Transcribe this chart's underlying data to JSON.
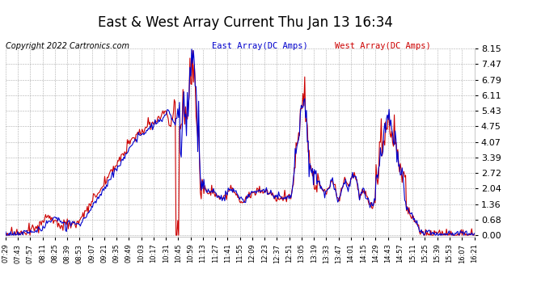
{
  "title": "East & West Array Current Thu Jan 13 16:34",
  "copyright": "Copyright 2022 Cartronics.com",
  "legend_east": "East Array(DC Amps)",
  "legend_west": "West Array(DC Amps)",
  "east_color": "#0000cc",
  "west_color": "#cc0000",
  "bg_color": "#ffffff",
  "grid_color": "#999999",
  "yticks": [
    0.0,
    0.68,
    1.36,
    2.04,
    2.72,
    3.39,
    4.07,
    4.75,
    5.43,
    6.11,
    6.79,
    7.47,
    8.15
  ],
  "ylim": [
    -0.05,
    8.15
  ],
  "xtick_labels": [
    "07:29",
    "07:43",
    "07:57",
    "08:11",
    "08:25",
    "08:39",
    "08:53",
    "09:07",
    "09:21",
    "09:35",
    "09:49",
    "10:03",
    "10:17",
    "10:31",
    "10:45",
    "10:59",
    "11:13",
    "11:27",
    "11:41",
    "11:55",
    "12:09",
    "12:23",
    "12:37",
    "12:51",
    "13:05",
    "13:19",
    "13:33",
    "13:47",
    "14:01",
    "14:15",
    "14:29",
    "14:43",
    "14:57",
    "15:11",
    "15:25",
    "15:39",
    "15:53",
    "16:07",
    "16:21"
  ],
  "title_fontsize": 12,
  "copyright_fontsize": 7,
  "legend_fontsize": 7.5,
  "tick_fontsize": 6,
  "ytick_fontsize": 8,
  "linewidth": 0.8
}
